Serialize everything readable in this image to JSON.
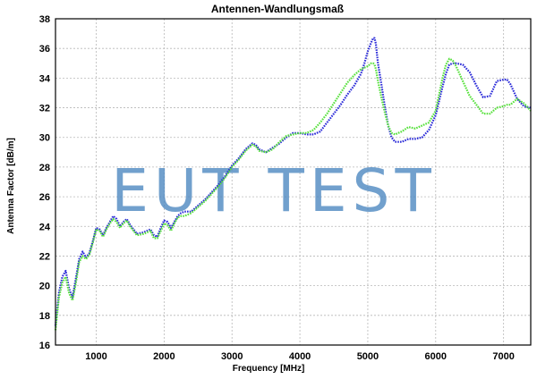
{
  "chart_data": {
    "type": "line",
    "title": "Antennen-Wandlungsmaß",
    "xlabel": "Frequency [MHz]",
    "ylabel": "Antenna Factor [dB/m]",
    "xlim": [
      400,
      7400
    ],
    "ylim": [
      16,
      38
    ],
    "x_ticks": [
      1000,
      2000,
      3000,
      4000,
      5000,
      6000,
      7000
    ],
    "y_ticks": [
      16,
      18,
      20,
      22,
      24,
      26,
      28,
      30,
      32,
      34,
      36,
      38
    ],
    "grid": true,
    "watermark": "EUT TEST",
    "series": [
      {
        "color": "#2a2ad8",
        "x": [
          400,
          450,
          500,
          550,
          600,
          650,
          700,
          750,
          800,
          850,
          900,
          950,
          1000,
          1050,
          1100,
          1150,
          1200,
          1250,
          1300,
          1350,
          1400,
          1450,
          1500,
          1600,
          1700,
          1800,
          1850,
          1900,
          1950,
          2000,
          2050,
          2100,
          2150,
          2200,
          2250,
          2300,
          2400,
          2500,
          2600,
          2700,
          2800,
          2900,
          3000,
          3100,
          3200,
          3300,
          3350,
          3400,
          3500,
          3600,
          3700,
          3800,
          3900,
          4000,
          4100,
          4200,
          4300,
          4400,
          4500,
          4600,
          4700,
          4800,
          4900,
          4950,
          5000,
          5050,
          5080,
          5100,
          5120,
          5150,
          5200,
          5250,
          5300,
          5350,
          5400,
          5500,
          5600,
          5700,
          5800,
          5900,
          6000,
          6100,
          6150,
          6200,
          6250,
          6300,
          6400,
          6500,
          6600,
          6700,
          6800,
          6900,
          7000,
          7050,
          7100,
          7200,
          7300,
          7400
        ],
        "y": [
          17.3,
          19.5,
          20.6,
          21.0,
          19.8,
          19.2,
          20.5,
          21.8,
          22.3,
          21.9,
          22.2,
          23.0,
          23.9,
          23.8,
          23.4,
          23.9,
          24.3,
          24.7,
          24.5,
          24.0,
          24.3,
          24.5,
          24.1,
          23.5,
          23.6,
          23.8,
          23.4,
          23.3,
          23.9,
          24.4,
          24.3,
          23.9,
          24.3,
          24.7,
          24.9,
          25.0,
          25.0,
          25.4,
          25.8,
          26.3,
          26.8,
          27.4,
          28.1,
          28.6,
          29.2,
          29.6,
          29.5,
          29.2,
          29.0,
          29.3,
          29.6,
          30.0,
          30.3,
          30.3,
          30.2,
          30.2,
          30.4,
          31.0,
          31.6,
          32.2,
          32.9,
          33.5,
          34.3,
          35.0,
          35.8,
          36.4,
          36.7,
          36.7,
          36.3,
          35.0,
          33.6,
          32.1,
          30.8,
          30.0,
          29.7,
          29.7,
          29.9,
          29.9,
          30.0,
          30.5,
          31.5,
          33.4,
          34.3,
          34.9,
          35.0,
          35.0,
          34.9,
          34.4,
          33.5,
          32.7,
          32.8,
          33.8,
          33.9,
          33.9,
          33.6,
          32.6,
          32.1,
          32.0
        ]
      },
      {
        "color": "#55e03a",
        "x": [
          400,
          450,
          500,
          550,
          600,
          650,
          700,
          750,
          800,
          850,
          900,
          950,
          1000,
          1050,
          1100,
          1150,
          1200,
          1250,
          1300,
          1350,
          1400,
          1450,
          1500,
          1600,
          1700,
          1800,
          1850,
          1900,
          1950,
          2000,
          2050,
          2100,
          2150,
          2200,
          2250,
          2300,
          2400,
          2500,
          2600,
          2700,
          2800,
          2900,
          3000,
          3100,
          3200,
          3300,
          3350,
          3400,
          3500,
          3600,
          3700,
          3800,
          3900,
          4000,
          4100,
          4200,
          4300,
          4400,
          4500,
          4600,
          4700,
          4800,
          4900,
          4950,
          5000,
          5050,
          5080,
          5100,
          5120,
          5150,
          5200,
          5250,
          5300,
          5350,
          5400,
          5500,
          5600,
          5700,
          5800,
          5900,
          6000,
          6100,
          6150,
          6200,
          6250,
          6300,
          6400,
          6500,
          6600,
          6700,
          6800,
          6900,
          7000,
          7050,
          7100,
          7200,
          7300,
          7400
        ],
        "y": [
          17.0,
          19.2,
          20.2,
          20.6,
          19.5,
          19.0,
          20.2,
          21.6,
          22.0,
          21.8,
          22.1,
          22.9,
          23.8,
          23.7,
          23.3,
          23.8,
          24.2,
          24.5,
          24.3,
          23.9,
          24.2,
          24.4,
          24.0,
          23.4,
          23.5,
          23.7,
          23.2,
          23.2,
          23.7,
          24.2,
          24.1,
          23.7,
          24.2,
          24.6,
          24.7,
          24.7,
          24.9,
          25.3,
          25.7,
          26.2,
          26.7,
          27.3,
          28.0,
          28.5,
          29.1,
          29.5,
          29.4,
          29.1,
          29.0,
          29.2,
          29.7,
          30.1,
          30.2,
          30.3,
          30.3,
          30.5,
          31.0,
          31.6,
          32.3,
          33.0,
          33.7,
          34.2,
          34.6,
          34.7,
          34.8,
          35.0,
          35.0,
          34.9,
          34.6,
          33.8,
          32.7,
          31.7,
          30.8,
          30.3,
          30.2,
          30.4,
          30.7,
          30.6,
          30.8,
          31.0,
          31.8,
          34.0,
          34.9,
          35.3,
          35.2,
          34.8,
          33.8,
          32.8,
          32.2,
          31.6,
          31.6,
          32.0,
          32.1,
          32.2,
          32.2,
          32.6,
          32.3,
          31.8
        ]
      }
    ]
  }
}
